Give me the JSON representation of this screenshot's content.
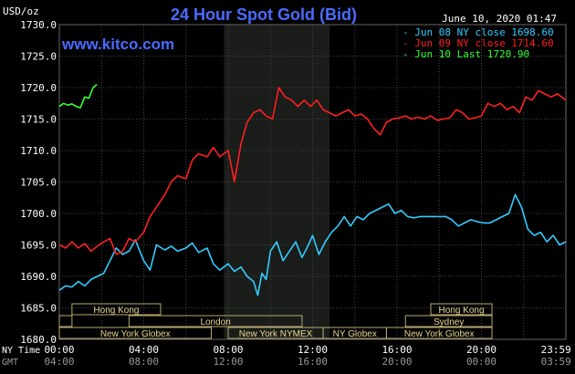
{
  "chart_data": {
    "type": "line",
    "title": "24 Hour Spot Gold (Bid)",
    "unit_label": "USD/oz",
    "watermark": "www.kitco.com",
    "timestamp": "June 10, 2020 01:47",
    "y_ticks": [
      "1730.0",
      "1725.0",
      "1720.0",
      "1715.0",
      "1710.0",
      "1705.0",
      "1700.0",
      "1695.0",
      "1690.0",
      "1685.0",
      "1680.0"
    ],
    "ylim": [
      1680,
      1730
    ],
    "xlim": [
      0,
      24
    ],
    "x_label_top": "NY Time",
    "x_label_bottom": "GMT",
    "x_ticks_ny": [
      "00:00",
      "04:00",
      "08:00",
      "12:00",
      "16:00",
      "20:00",
      "23:59"
    ],
    "x_ticks_gmt": [
      "04:00",
      "08:00",
      "12:00",
      "16:00",
      "20:00",
      "00:00",
      "03:59"
    ],
    "legend": [
      {
        "text": "- Jun 08 NY close 1698.60",
        "color": "#33ccff"
      },
      {
        "text": "- Jun 09 NY close 1714.60",
        "color": "#ff2020"
      },
      {
        "text": "- Jun 10 Last 1720.90",
        "color": "#33ff33"
      }
    ],
    "sessions": {
      "row1": [
        {
          "label": "Hong Kong",
          "start": 0.6,
          "end": 4.8
        },
        {
          "label": "Hong Kong",
          "start": 17.6,
          "end": 20.5
        }
      ],
      "row2": [
        {
          "label": "",
          "start": 0,
          "end": 0.6
        },
        {
          "label": "London",
          "start": 3.3,
          "end": 11.5
        },
        {
          "label": "Sydney",
          "start": 16.4,
          "end": 20.5
        }
      ],
      "row3": [
        {
          "label": "New York Globex",
          "start": 0,
          "end": 7.2
        },
        {
          "label": "New York NYMEX",
          "start": 8.0,
          "end": 12.5
        },
        {
          "label": "NY Globex",
          "start": 12.5,
          "end": 15.5
        },
        {
          "label": "New York Globex",
          "start": 15.5,
          "end": 20.5
        }
      ]
    },
    "shaded_range": [
      7.8,
      12.8
    ],
    "series": [
      {
        "name": "Jun 08",
        "color": "#33ccff",
        "x": [
          0,
          0.3,
          0.6,
          0.9,
          1.2,
          1.5,
          1.8,
          2.1,
          2.4,
          2.7,
          3.0,
          3.3,
          3.6,
          4.0,
          4.3,
          4.6,
          5.0,
          5.3,
          5.6,
          6.0,
          6.3,
          6.6,
          7.0,
          7.3,
          7.6,
          8.0,
          8.3,
          8.6,
          8.9,
          9.2,
          9.4,
          9.6,
          9.8,
          10.0,
          10.3,
          10.6,
          10.9,
          11.2,
          11.5,
          11.8,
          12.0,
          12.3,
          12.6,
          12.9,
          13.2,
          13.5,
          13.8,
          14.1,
          14.4,
          14.7,
          15.0,
          15.3,
          15.6,
          15.9,
          16.2,
          16.5,
          16.8,
          17.1,
          17.4,
          17.7,
          18.0,
          18.3,
          18.6,
          18.9,
          19.2,
          19.5,
          19.8,
          20.1,
          20.4,
          20.7,
          21.0,
          21.3,
          21.6,
          21.9,
          22.2,
          22.5,
          22.8,
          23.1,
          23.4,
          23.7,
          23.99
        ],
        "values": [
          1687.8,
          1688.5,
          1688.3,
          1689.2,
          1688.5,
          1689.5,
          1690.0,
          1690.5,
          1692.5,
          1694.5,
          1693.5,
          1694.0,
          1695.8,
          1692.5,
          1691.0,
          1695.0,
          1694.2,
          1694.8,
          1694.0,
          1694.5,
          1695.3,
          1693.8,
          1694.5,
          1692.0,
          1691.0,
          1692.0,
          1690.8,
          1691.5,
          1690.0,
          1689.2,
          1687.0,
          1690.5,
          1689.5,
          1694.0,
          1695.5,
          1692.5,
          1694.0,
          1695.5,
          1693.0,
          1695.0,
          1696.5,
          1693.5,
          1695.5,
          1697.0,
          1698.0,
          1699.5,
          1698.0,
          1699.5,
          1699.0,
          1700.0,
          1700.5,
          1701.0,
          1701.5,
          1700.0,
          1700.5,
          1699.5,
          1699.3,
          1699.5,
          1699.5,
          1699.5,
          1699.5,
          1699.5,
          1699.0,
          1698.0,
          1698.5,
          1699.0,
          1698.7,
          1698.5,
          1698.5,
          1699.0,
          1699.5,
          1700.0,
          1703.0,
          1701.0,
          1697.5,
          1696.5,
          1697.0,
          1695.5,
          1696.5,
          1695.0,
          1695.5
        ]
      },
      {
        "name": "Jun 09",
        "color": "#ff2020",
        "x": [
          0,
          0.3,
          0.6,
          0.9,
          1.2,
          1.5,
          1.8,
          2.1,
          2.4,
          2.7,
          3.0,
          3.3,
          3.6,
          4.0,
          4.3,
          4.6,
          5.0,
          5.3,
          5.6,
          6.0,
          6.3,
          6.6,
          7.0,
          7.3,
          7.6,
          8.0,
          8.3,
          8.6,
          8.9,
          9.2,
          9.5,
          9.8,
          10.1,
          10.4,
          10.7,
          11.0,
          11.3,
          11.6,
          11.9,
          12.2,
          12.5,
          12.8,
          13.1,
          13.4,
          13.7,
          14.0,
          14.3,
          14.6,
          14.9,
          15.2,
          15.5,
          15.8,
          16.1,
          16.4,
          16.7,
          17.0,
          17.3,
          17.6,
          17.9,
          18.2,
          18.5,
          18.8,
          19.1,
          19.4,
          19.7,
          20.0,
          20.3,
          20.6,
          20.9,
          21.2,
          21.5,
          21.8,
          22.1,
          22.4,
          22.7,
          23.0,
          23.3,
          23.6,
          23.99
        ],
        "values": [
          1695.0,
          1694.5,
          1695.5,
          1694.5,
          1695.2,
          1694.0,
          1694.8,
          1695.5,
          1696.0,
          1693.5,
          1694.0,
          1696.0,
          1695.5,
          1697.0,
          1699.5,
          1701.0,
          1703.0,
          1705.0,
          1706.0,
          1705.5,
          1708.5,
          1709.5,
          1709.0,
          1710.5,
          1709.0,
          1710.0,
          1705.0,
          1711.0,
          1714.5,
          1716.0,
          1716.5,
          1715.5,
          1715.0,
          1720.0,
          1718.5,
          1718.0,
          1717.0,
          1718.0,
          1717.0,
          1718.0,
          1716.5,
          1716.0,
          1715.5,
          1716.0,
          1716.5,
          1715.5,
          1715.8,
          1715.0,
          1713.5,
          1712.5,
          1714.5,
          1715.0,
          1715.2,
          1715.5,
          1715.0,
          1715.3,
          1715.0,
          1715.5,
          1714.8,
          1715.0,
          1715.2,
          1716.5,
          1716.0,
          1715.0,
          1715.2,
          1715.5,
          1717.5,
          1717.0,
          1717.5,
          1716.5,
          1717.0,
          1716.0,
          1718.5,
          1718.0,
          1719.5,
          1719.0,
          1718.5,
          1719.0,
          1718.0
        ]
      },
      {
        "name": "Jun 10",
        "color": "#33ff33",
        "x": [
          0,
          0.2,
          0.4,
          0.6,
          0.8,
          1.0,
          1.2,
          1.4,
          1.6,
          1.78
        ],
        "values": [
          1717.0,
          1717.5,
          1717.2,
          1717.4,
          1717.0,
          1716.8,
          1718.5,
          1718.3,
          1720.0,
          1720.5
        ]
      }
    ]
  }
}
